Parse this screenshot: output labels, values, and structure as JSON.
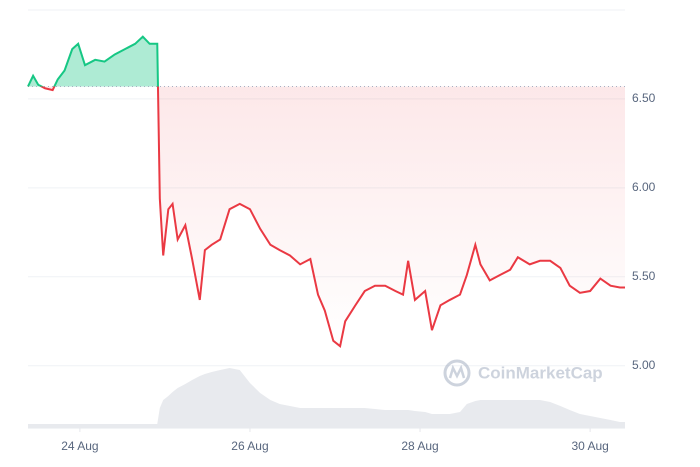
{
  "chart_data": {
    "type": "line",
    "watermark": "CoinMarketCap",
    "x": [
      23.39,
      23.45,
      23.51,
      23.59,
      23.68,
      23.74,
      23.82,
      23.91,
      23.98,
      24.06,
      24.18,
      24.29,
      24.41,
      24.53,
      24.65,
      24.74,
      24.82,
      24.91,
      24.94,
      24.98,
      25.04,
      25.09,
      25.15,
      25.24,
      25.32,
      25.41,
      25.47,
      25.55,
      25.65,
      25.76,
      25.88,
      26.0,
      26.12,
      26.24,
      26.35,
      26.47,
      26.59,
      26.71,
      26.8,
      26.88,
      26.98,
      27.06,
      27.12,
      27.24,
      27.35,
      27.47,
      27.59,
      27.71,
      27.8,
      27.86,
      27.94,
      28.06,
      28.14,
      28.24,
      28.35,
      28.47,
      28.55,
      28.65,
      28.71,
      28.82,
      28.94,
      29.06,
      29.15,
      29.29,
      29.41,
      29.53,
      29.65,
      29.76,
      29.88,
      30.0,
      30.12,
      30.24,
      30.35,
      30.41
    ],
    "values": [
      6.57,
      6.63,
      6.58,
      6.56,
      6.55,
      6.61,
      6.66,
      6.78,
      6.81,
      6.69,
      6.72,
      6.71,
      6.75,
      6.78,
      6.81,
      6.85,
      6.81,
      6.81,
      5.94,
      5.62,
      5.88,
      5.91,
      5.71,
      5.79,
      5.6,
      5.37,
      5.65,
      5.68,
      5.71,
      5.88,
      5.91,
      5.88,
      5.77,
      5.68,
      5.65,
      5.62,
      5.57,
      5.6,
      5.4,
      5.31,
      5.14,
      5.11,
      5.25,
      5.34,
      5.42,
      5.45,
      5.45,
      5.42,
      5.4,
      5.59,
      5.37,
      5.42,
      5.2,
      5.34,
      5.37,
      5.4,
      5.51,
      5.68,
      5.57,
      5.48,
      5.51,
      5.54,
      5.61,
      5.57,
      5.59,
      5.59,
      5.55,
      5.45,
      5.41,
      5.42,
      5.49,
      5.45,
      5.44,
      5.44
    ],
    "volume": [
      4,
      4,
      4,
      4,
      4,
      4,
      4,
      4,
      4,
      4,
      4,
      4,
      4,
      4,
      4,
      4,
      4,
      4,
      20,
      28,
      32,
      36,
      40,
      44,
      48,
      52,
      54,
      56,
      58,
      60,
      58,
      45,
      35,
      28,
      24,
      22,
      20,
      20,
      20,
      20,
      20,
      20,
      20,
      20,
      20,
      19,
      18,
      18,
      18,
      18,
      17,
      16,
      14,
      14,
      14,
      16,
      24,
      27,
      28,
      28,
      28,
      28,
      28,
      28,
      28,
      26,
      22,
      18,
      14,
      12,
      10,
      8,
      6,
      6
    ],
    "baseline": 6.57,
    "up_color": "#16c784",
    "down_color": "#ea3943",
    "volume_color": "#e8eaee",
    "xlim": [
      23.39,
      30.41
    ],
    "ylim": [
      4.65,
      7.0
    ],
    "xticks": [
      {
        "value": 24,
        "label": "24 Aug"
      },
      {
        "value": 26,
        "label": "26 Aug"
      },
      {
        "value": 28,
        "label": "28 Aug"
      },
      {
        "value": 30,
        "label": "30 Aug"
      }
    ],
    "yticks": [
      {
        "value": 5.0,
        "label": "5.00"
      },
      {
        "value": 5.5,
        "label": "5.50"
      },
      {
        "value": 6.0,
        "label": "6.00"
      },
      {
        "value": 6.5,
        "label": "6.50"
      }
    ],
    "grid": true
  }
}
